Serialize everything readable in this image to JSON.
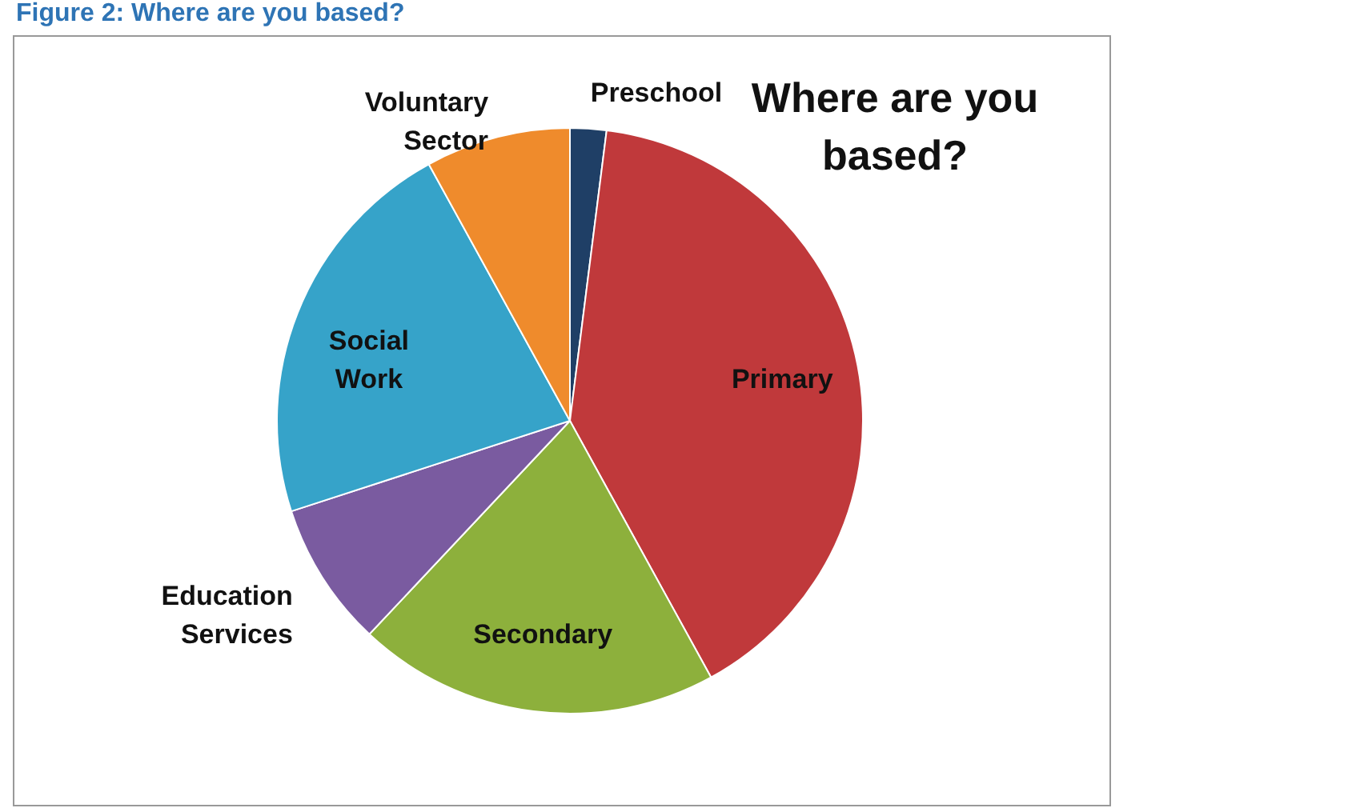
{
  "chart_data": {
    "type": "pie",
    "title": "Where are you based?",
    "annotations": [
      "Figure 2: Where are you based?"
    ],
    "categories": [
      "Preschool",
      "Primary",
      "Secondary",
      "Education Services",
      "Social Work",
      "Voluntary Sector"
    ],
    "values": [
      2,
      40,
      20,
      8,
      22,
      8
    ],
    "colors": [
      "#1f3f66",
      "#c0393b",
      "#8db03c",
      "#7a5ba0",
      "#36a3c9",
      "#ef8b2c"
    ],
    "legend": false
  }
}
